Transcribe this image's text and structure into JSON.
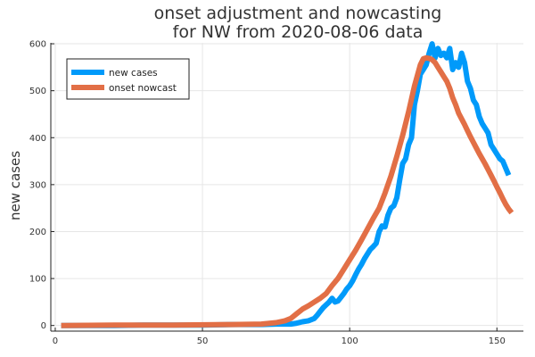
{
  "chart_data": {
    "type": "line",
    "title_lines": [
      "onset adjustment and nowcasting",
      "for NW from 2020-08-06 data"
    ],
    "xlabel": "",
    "ylabel": "new cases",
    "xlim": [
      -1.5,
      159
    ],
    "ylim": [
      -12,
      602
    ],
    "xticks": [
      0,
      50,
      100,
      150
    ],
    "yticks": [
      0,
      100,
      200,
      300,
      400,
      500,
      600
    ],
    "grid": true,
    "legend_position": "top-left",
    "series": [
      {
        "name": "new cases",
        "color": "#009AFA",
        "points": [
          [
            2,
            0
          ],
          [
            10,
            0
          ],
          [
            20,
            0
          ],
          [
            30,
            1
          ],
          [
            40,
            1
          ],
          [
            50,
            1
          ],
          [
            60,
            2
          ],
          [
            65,
            2
          ],
          [
            70,
            2
          ],
          [
            75,
            3
          ],
          [
            80,
            3
          ],
          [
            82,
            5
          ],
          [
            84,
            8
          ],
          [
            86,
            10
          ],
          [
            88,
            15
          ],
          [
            89,
            22
          ],
          [
            90,
            30
          ],
          [
            91,
            38
          ],
          [
            92,
            44
          ],
          [
            93,
            50
          ],
          [
            94,
            58
          ],
          [
            95,
            50
          ],
          [
            96,
            52
          ],
          [
            97,
            60
          ],
          [
            98,
            68
          ],
          [
            99,
            78
          ],
          [
            100,
            85
          ],
          [
            101,
            95
          ],
          [
            102,
            108
          ],
          [
            103,
            120
          ],
          [
            104,
            130
          ],
          [
            105,
            142
          ],
          [
            106,
            152
          ],
          [
            107,
            162
          ],
          [
            108,
            168
          ],
          [
            109,
            175
          ],
          [
            110,
            200
          ],
          [
            111,
            212
          ],
          [
            112,
            210
          ],
          [
            113,
            235
          ],
          [
            114,
            250
          ],
          [
            115,
            255
          ],
          [
            116,
            272
          ],
          [
            117,
            310
          ],
          [
            118,
            345
          ],
          [
            119,
            355
          ],
          [
            120,
            385
          ],
          [
            121,
            400
          ],
          [
            122,
            470
          ],
          [
            123,
            500
          ],
          [
            124,
            535
          ],
          [
            125,
            545
          ],
          [
            126,
            555
          ],
          [
            127,
            580
          ],
          [
            128,
            600
          ],
          [
            129,
            570
          ],
          [
            130,
            590
          ],
          [
            131,
            575
          ],
          [
            132,
            580
          ],
          [
            133,
            570
          ],
          [
            134,
            590
          ],
          [
            135,
            545
          ],
          [
            136,
            560
          ],
          [
            137,
            550
          ],
          [
            138,
            580
          ],
          [
            139,
            560
          ],
          [
            140,
            520
          ],
          [
            141,
            505
          ],
          [
            142,
            480
          ],
          [
            143,
            470
          ],
          [
            144,
            445
          ],
          [
            145,
            430
          ],
          [
            146,
            420
          ],
          [
            147,
            410
          ],
          [
            148,
            385
          ],
          [
            149,
            375
          ],
          [
            150,
            365
          ],
          [
            151,
            355
          ],
          [
            152,
            350
          ],
          [
            153,
            335
          ],
          [
            154,
            320
          ]
        ]
      },
      {
        "name": "onset nowcast",
        "color": "#E26F46",
        "points": [
          [
            2,
            0
          ],
          [
            20,
            1
          ],
          [
            40,
            1
          ],
          [
            60,
            2
          ],
          [
            70,
            3
          ],
          [
            75,
            6
          ],
          [
            78,
            10
          ],
          [
            80,
            15
          ],
          [
            82,
            25
          ],
          [
            84,
            35
          ],
          [
            86,
            42
          ],
          [
            88,
            50
          ],
          [
            90,
            58
          ],
          [
            92,
            68
          ],
          [
            94,
            85
          ],
          [
            96,
            100
          ],
          [
            98,
            120
          ],
          [
            100,
            140
          ],
          [
            102,
            160
          ],
          [
            104,
            182
          ],
          [
            106,
            205
          ],
          [
            108,
            228
          ],
          [
            110,
            250
          ],
          [
            112,
            282
          ],
          [
            114,
            318
          ],
          [
            116,
            360
          ],
          [
            118,
            405
          ],
          [
            120,
            455
          ],
          [
            122,
            510
          ],
          [
            124,
            555
          ],
          [
            125,
            568
          ],
          [
            126,
            570
          ],
          [
            127,
            569
          ],
          [
            128,
            566
          ],
          [
            129,
            560
          ],
          [
            130,
            550
          ],
          [
            131,
            540
          ],
          [
            132,
            530
          ],
          [
            133,
            520
          ],
          [
            134,
            505
          ],
          [
            135,
            485
          ],
          [
            136,
            470
          ],
          [
            137,
            452
          ],
          [
            138,
            440
          ],
          [
            139,
            428
          ],
          [
            140,
            415
          ],
          [
            141,
            402
          ],
          [
            142,
            390
          ],
          [
            143,
            378
          ],
          [
            144,
            366
          ],
          [
            145,
            355
          ],
          [
            146,
            344
          ],
          [
            147,
            332
          ],
          [
            148,
            320
          ],
          [
            149,
            308
          ],
          [
            150,
            295
          ],
          [
            151,
            283
          ],
          [
            152,
            270
          ],
          [
            153,
            258
          ],
          [
            154,
            248
          ],
          [
            155,
            240
          ]
        ]
      }
    ]
  }
}
